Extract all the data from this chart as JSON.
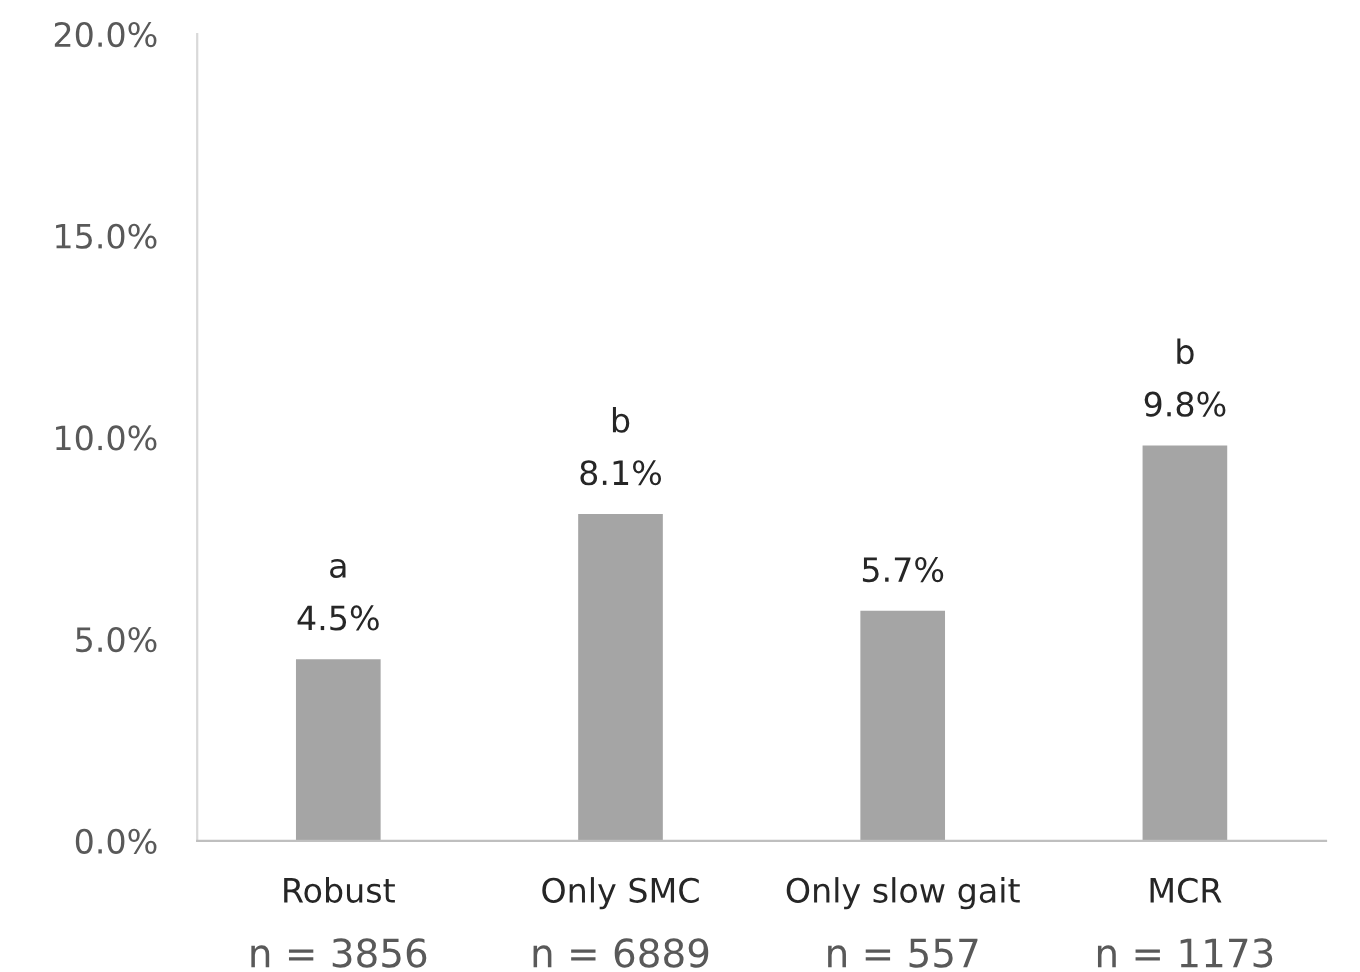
{
  "chart_data": {
    "type": "bar",
    "categories": [
      "Robust\nn = 3856",
      "Only SMC\nn = 6889",
      "Only slow gait\nn = 557",
      "MCR\nn = 1173"
    ],
    "values": [
      4.5,
      8.1,
      5.7,
      9.8
    ],
    "value_labels": [
      "a\n4.5%",
      "b\n8.1%",
      "5.7%",
      "b\n9.8%"
    ],
    "color": "#a5a5a5",
    "ylim": [
      0,
      20
    ],
    "yticks": [
      {
        "value": 0,
        "label": "0.0%"
      },
      {
        "value": 5,
        "label": "5.0%"
      },
      {
        "value": 10,
        "label": "10.0%"
      },
      {
        "value": 15,
        "label": "15.0%"
      },
      {
        "value": 20,
        "label": "20.0%"
      }
    ],
    "grid": false,
    "legend": false
  }
}
